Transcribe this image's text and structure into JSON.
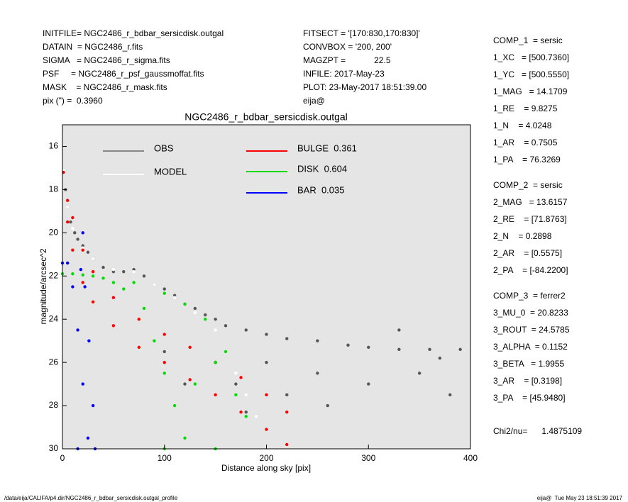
{
  "header": {
    "left": [
      "INITFILE= NGC2486_r_bdbar_sersicdisk.outgal",
      "DATAIN  = NGC2486_r.fits",
      "SIGMA   = NGC2486_r_sigma.fits",
      "PSF     = NGC2486_r_psf_gaussmoffat.fits",
      "MASK    = NGC2486_r_mask.fits",
      "pix (\") =  0.3960"
    ],
    "middle": [
      "FITSECT = '[170:830,170:830]'",
      "CONVBOX = '200, 200'",
      "MAGZPT =            22.5",
      "INFILE: 2017-May-23",
      "PLOT: 23-May-2017 18:51:39.00",
      "eija@"
    ]
  },
  "params": [
    [
      "COMP_1  = sersic",
      "1_XC   = [500.7360]",
      "1_YC   = [500.5550]",
      "1_MAG   = 14.1709",
      "1_RE    = 9.8275",
      "1_N    = 4.0248",
      "1_AR    = 0.7505",
      "1_PA    = 76.3269"
    ],
    [
      "COMP_2  = sersic",
      "2_MAG   = 13.6157",
      "2_RE    = [71.8763]",
      "2_N    = 0.2898",
      "2_AR    = [0.5575]",
      "2_PA    = [-84.2200]"
    ],
    [
      "COMP_3  = ferrer2",
      "3_MU_0  = 20.8233",
      "3_ROUT  = 24.5785",
      "3_ALPHA  = 0.1152",
      "3_BETA   = 1.9955",
      "3_AR    = [0.3198]",
      "3_PA    = [45.9480]"
    ]
  ],
  "chi2": "Chi2/nu=      1.4875109",
  "footer": {
    "left": "/data/eija/CALIFA/p4.dir/NGC2486_r_bdbar_sersicdisk.outgal_profile",
    "right": "eija@  Tue May 23 18:51:39 2017"
  },
  "chart_data": {
    "type": "scatter",
    "title": "NGC2486_r_bdbar_sersicdisk.outgal",
    "x_label": "Distance along sky [pix]",
    "y_label": "magnitude/arcsec^2",
    "xlim": [
      0,
      400
    ],
    "xticks": [
      0,
      100,
      200,
      300,
      400
    ],
    "ylim": [
      30,
      15
    ],
    "yticks": [
      16,
      18,
      20,
      22,
      24,
      26,
      28,
      30
    ],
    "background": "#e5e5e5",
    "series": [
      {
        "name": "OBS",
        "color": "#555555",
        "x": [
          1,
          3,
          5,
          8,
          12,
          15,
          20,
          25,
          30,
          40,
          50,
          60,
          70,
          80,
          90,
          100,
          110,
          120,
          130,
          140,
          150,
          160,
          180,
          200,
          220,
          250,
          280,
          300,
          330,
          360,
          390,
          150,
          170,
          200,
          250,
          300,
          350,
          380,
          260,
          180,
          120,
          100,
          330,
          370,
          220
        ],
        "values": [
          17.1,
          18,
          18.8,
          19.5,
          20,
          20.3,
          20.6,
          20.9,
          21.2,
          21.6,
          21.8,
          21.8,
          21.7,
          22,
          22.4,
          22.6,
          22.9,
          23.3,
          23.5,
          23.8,
          24,
          24.3,
          24.5,
          24.7,
          24.9,
          25,
          25.2,
          25.3,
          25.4,
          25.4,
          25.4,
          26,
          27,
          26,
          26.5,
          27,
          26.5,
          27.5,
          28,
          28.3,
          27,
          25.5,
          24.5,
          25.8,
          27.5
        ]
      },
      {
        "name": "MODEL",
        "color": "#ffffff",
        "x": [
          1,
          5,
          10,
          20,
          30,
          50,
          70,
          90,
          110,
          130,
          150,
          160,
          170,
          180,
          190
        ],
        "values": [
          17.1,
          18.8,
          19.8,
          20.7,
          21.2,
          21.7,
          21.8,
          22.4,
          23,
          23.7,
          24.5,
          25.5,
          26.5,
          27.5,
          28.5
        ]
      },
      {
        "name": "BULGE  0.361",
        "color": "#ff0000",
        "x": [
          1,
          5,
          10,
          20,
          30,
          50,
          75,
          100,
          125,
          150,
          175,
          200,
          220,
          5,
          10,
          20,
          30,
          50,
          75,
          100,
          125,
          150,
          175,
          200,
          220
        ],
        "values": [
          17.2,
          19.5,
          20.8,
          22.3,
          23.2,
          24.3,
          25.3,
          26,
          26.8,
          27.5,
          28.3,
          29.1,
          29.8,
          18.5,
          19.3,
          20.8,
          21.8,
          23,
          24,
          24.7,
          25.3,
          26,
          26.7,
          27.5,
          28.3
        ]
      },
      {
        "name": "DISK  0.604",
        "color": "#00dd00",
        "x": [
          0,
          10,
          20,
          30,
          40,
          50,
          60,
          70,
          80,
          90,
          100,
          110,
          120,
          130,
          150,
          170,
          180,
          100,
          120,
          140,
          160,
          100,
          150
        ],
        "values": [
          21.9,
          21.9,
          21.95,
          22,
          22.1,
          22.3,
          22.6,
          22.3,
          23.5,
          25,
          26.5,
          28,
          29.5,
          27,
          26,
          27.5,
          28.5,
          22.8,
          23.3,
          24,
          25.5,
          30,
          30
        ]
      },
      {
        "name": "BAR  0.035",
        "color": "#0000ff",
        "x": [
          0,
          5,
          10,
          15,
          20,
          25,
          18,
          22,
          26,
          30,
          32,
          15,
          20
        ],
        "values": [
          21.4,
          21.4,
          22.5,
          24.5,
          27,
          29.5,
          21.7,
          22.5,
          25,
          28,
          30,
          30,
          20
        ]
      }
    ]
  }
}
